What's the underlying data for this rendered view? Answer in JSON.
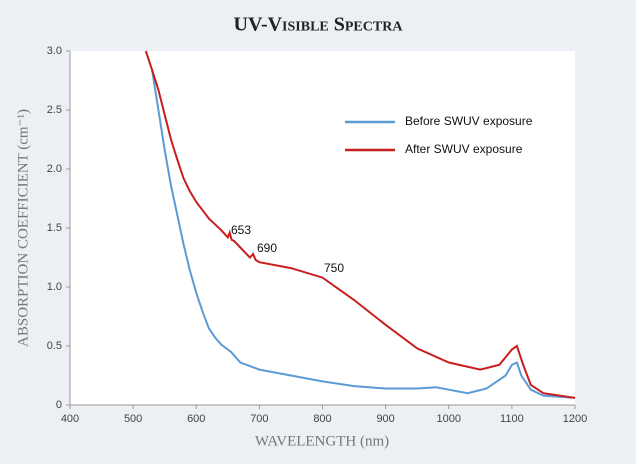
{
  "chart_data": {
    "type": "line",
    "title": "UV-Visible Spectra",
    "x_label": "WAVELENGTH (nm)",
    "y_label": "ABSORPTION COEFFICIENT (cm⁻¹)",
    "xlim": [
      400,
      1200
    ],
    "xticks": [
      400,
      500,
      600,
      700,
      800,
      900,
      1000,
      1100,
      1200
    ],
    "ylim": [
      0,
      3.0
    ],
    "yticks": [
      0,
      0.5,
      {
        "value": 1,
        "label": "1.0"
      },
      1.5,
      {
        "value": 2,
        "label": "2.0"
      },
      2.5,
      {
        "value": 3,
        "label": "3.0"
      }
    ],
    "legend": "upper right",
    "series": [
      {
        "name": "Before SWUV exposure",
        "color": "#5b9bd5",
        "x": [
          530,
          540,
          550,
          560,
          570,
          580,
          590,
          600,
          610,
          620,
          630,
          640,
          650,
          655,
          670,
          700,
          750,
          800,
          850,
          900,
          950,
          980,
          1000,
          1030,
          1060,
          1090,
          1100,
          1108,
          1115,
          1130,
          1150,
          1200
        ],
        "values": [
          2.84,
          2.5,
          2.16,
          1.86,
          1.61,
          1.36,
          1.14,
          0.95,
          0.79,
          0.65,
          0.57,
          0.51,
          0.47,
          0.45,
          0.36,
          0.3,
          0.25,
          0.2,
          0.16,
          0.14,
          0.14,
          0.15,
          0.13,
          0.1,
          0.14,
          0.25,
          0.34,
          0.36,
          0.25,
          0.13,
          0.08,
          0.06
        ]
      },
      {
        "name": "After SWUV exposure",
        "color": "#c81e1e",
        "x": [
          520,
          530,
          540,
          550,
          560,
          570,
          580,
          590,
          600,
          620,
          640,
          650,
          653,
          656,
          660,
          685,
          690,
          694,
          700,
          750,
          800,
          850,
          900,
          950,
          1000,
          1050,
          1080,
          1100,
          1108,
          1118,
          1130,
          1150,
          1200
        ],
        "values": [
          3.0,
          2.84,
          2.67,
          2.46,
          2.25,
          2.08,
          1.92,
          1.81,
          1.72,
          1.58,
          1.48,
          1.42,
          1.46,
          1.4,
          1.39,
          1.25,
          1.28,
          1.23,
          1.21,
          1.16,
          1.08,
          0.89,
          0.68,
          0.48,
          0.36,
          0.3,
          0.34,
          0.47,
          0.5,
          0.34,
          0.17,
          0.1,
          0.06
        ]
      }
    ],
    "annotations": [
      "653",
      "690",
      "750"
    ]
  }
}
